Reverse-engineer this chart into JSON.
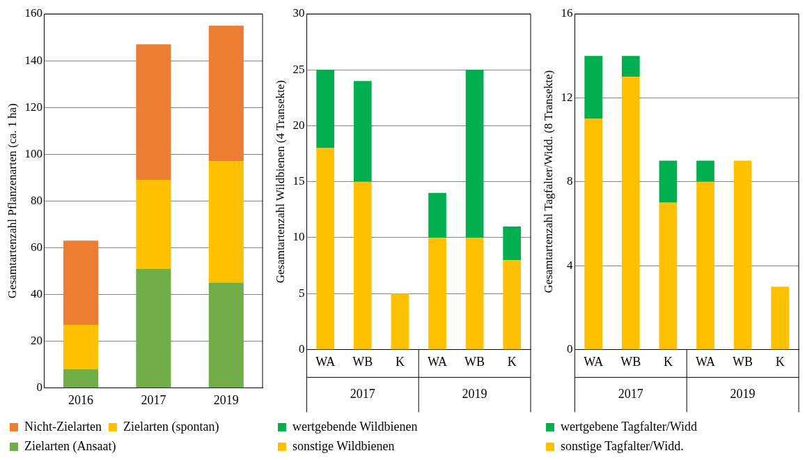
{
  "chart_data": [
    {
      "type": "bar",
      "ylabel": "Gesamtartenzahl Pflanzenarten (ca. 1 ha)",
      "categories": [
        "2016",
        "2017",
        "2019"
      ],
      "stacked": true,
      "ylim": [
        0,
        160
      ],
      "yticks": [
        0,
        20,
        40,
        60,
        80,
        100,
        120,
        140,
        160
      ],
      "grid": "y",
      "legend": "bottom",
      "series": [
        {
          "name": "Zielarten (Ansaat)",
          "color": "#70ad47",
          "values": [
            8,
            51,
            45
          ]
        },
        {
          "name": "Zielarten (spontan)",
          "color": "#ffc000",
          "values": [
            19,
            38,
            52
          ]
        },
        {
          "name": "Nicht-Zielarten",
          "color": "#ed7d31",
          "values": [
            36,
            58,
            58
          ]
        }
      ]
    },
    {
      "type": "bar",
      "ylabel": "Gesamtartenzahl Wildbienen (4 Transekte)",
      "categories": [
        "WA",
        "WB",
        "K",
        "WA",
        "WB",
        "K"
      ],
      "annotations": [
        "2017",
        "2019"
      ],
      "stacked": true,
      "ylim": [
        0,
        30
      ],
      "yticks": [
        0,
        5,
        10,
        15,
        20,
        25,
        30
      ],
      "grid": "y",
      "legend": "bottom",
      "series": [
        {
          "name": "sonstige Wildbienen",
          "color": "#ffc000",
          "values": [
            18,
            15,
            5,
            10,
            10,
            8
          ]
        },
        {
          "name": "wertgebende Wildbienen",
          "color": "#00b050",
          "values": [
            7,
            9,
            0,
            4,
            15,
            3
          ]
        }
      ]
    },
    {
      "type": "bar",
      "ylabel": "Gesamtartenzahl Tagfalter/Widd. (8 Transekte)",
      "categories": [
        "WA",
        "WB",
        "K",
        "WA",
        "WB",
        "K"
      ],
      "annotations": [
        "2017",
        "2019"
      ],
      "stacked": true,
      "ylim": [
        0,
        16
      ],
      "yticks": [
        0,
        4,
        8,
        12,
        16
      ],
      "grid": "y",
      "legend": "bottom",
      "series": [
        {
          "name": "sonstige Tagfalter/Widd.",
          "color": "#ffc000",
          "values": [
            11,
            13,
            7,
            8,
            9,
            3
          ]
        },
        {
          "name": "wertgebene Tagfalter/Widd",
          "color": "#00b050",
          "values": [
            3,
            1,
            2,
            1,
            0,
            0
          ]
        }
      ]
    }
  ]
}
